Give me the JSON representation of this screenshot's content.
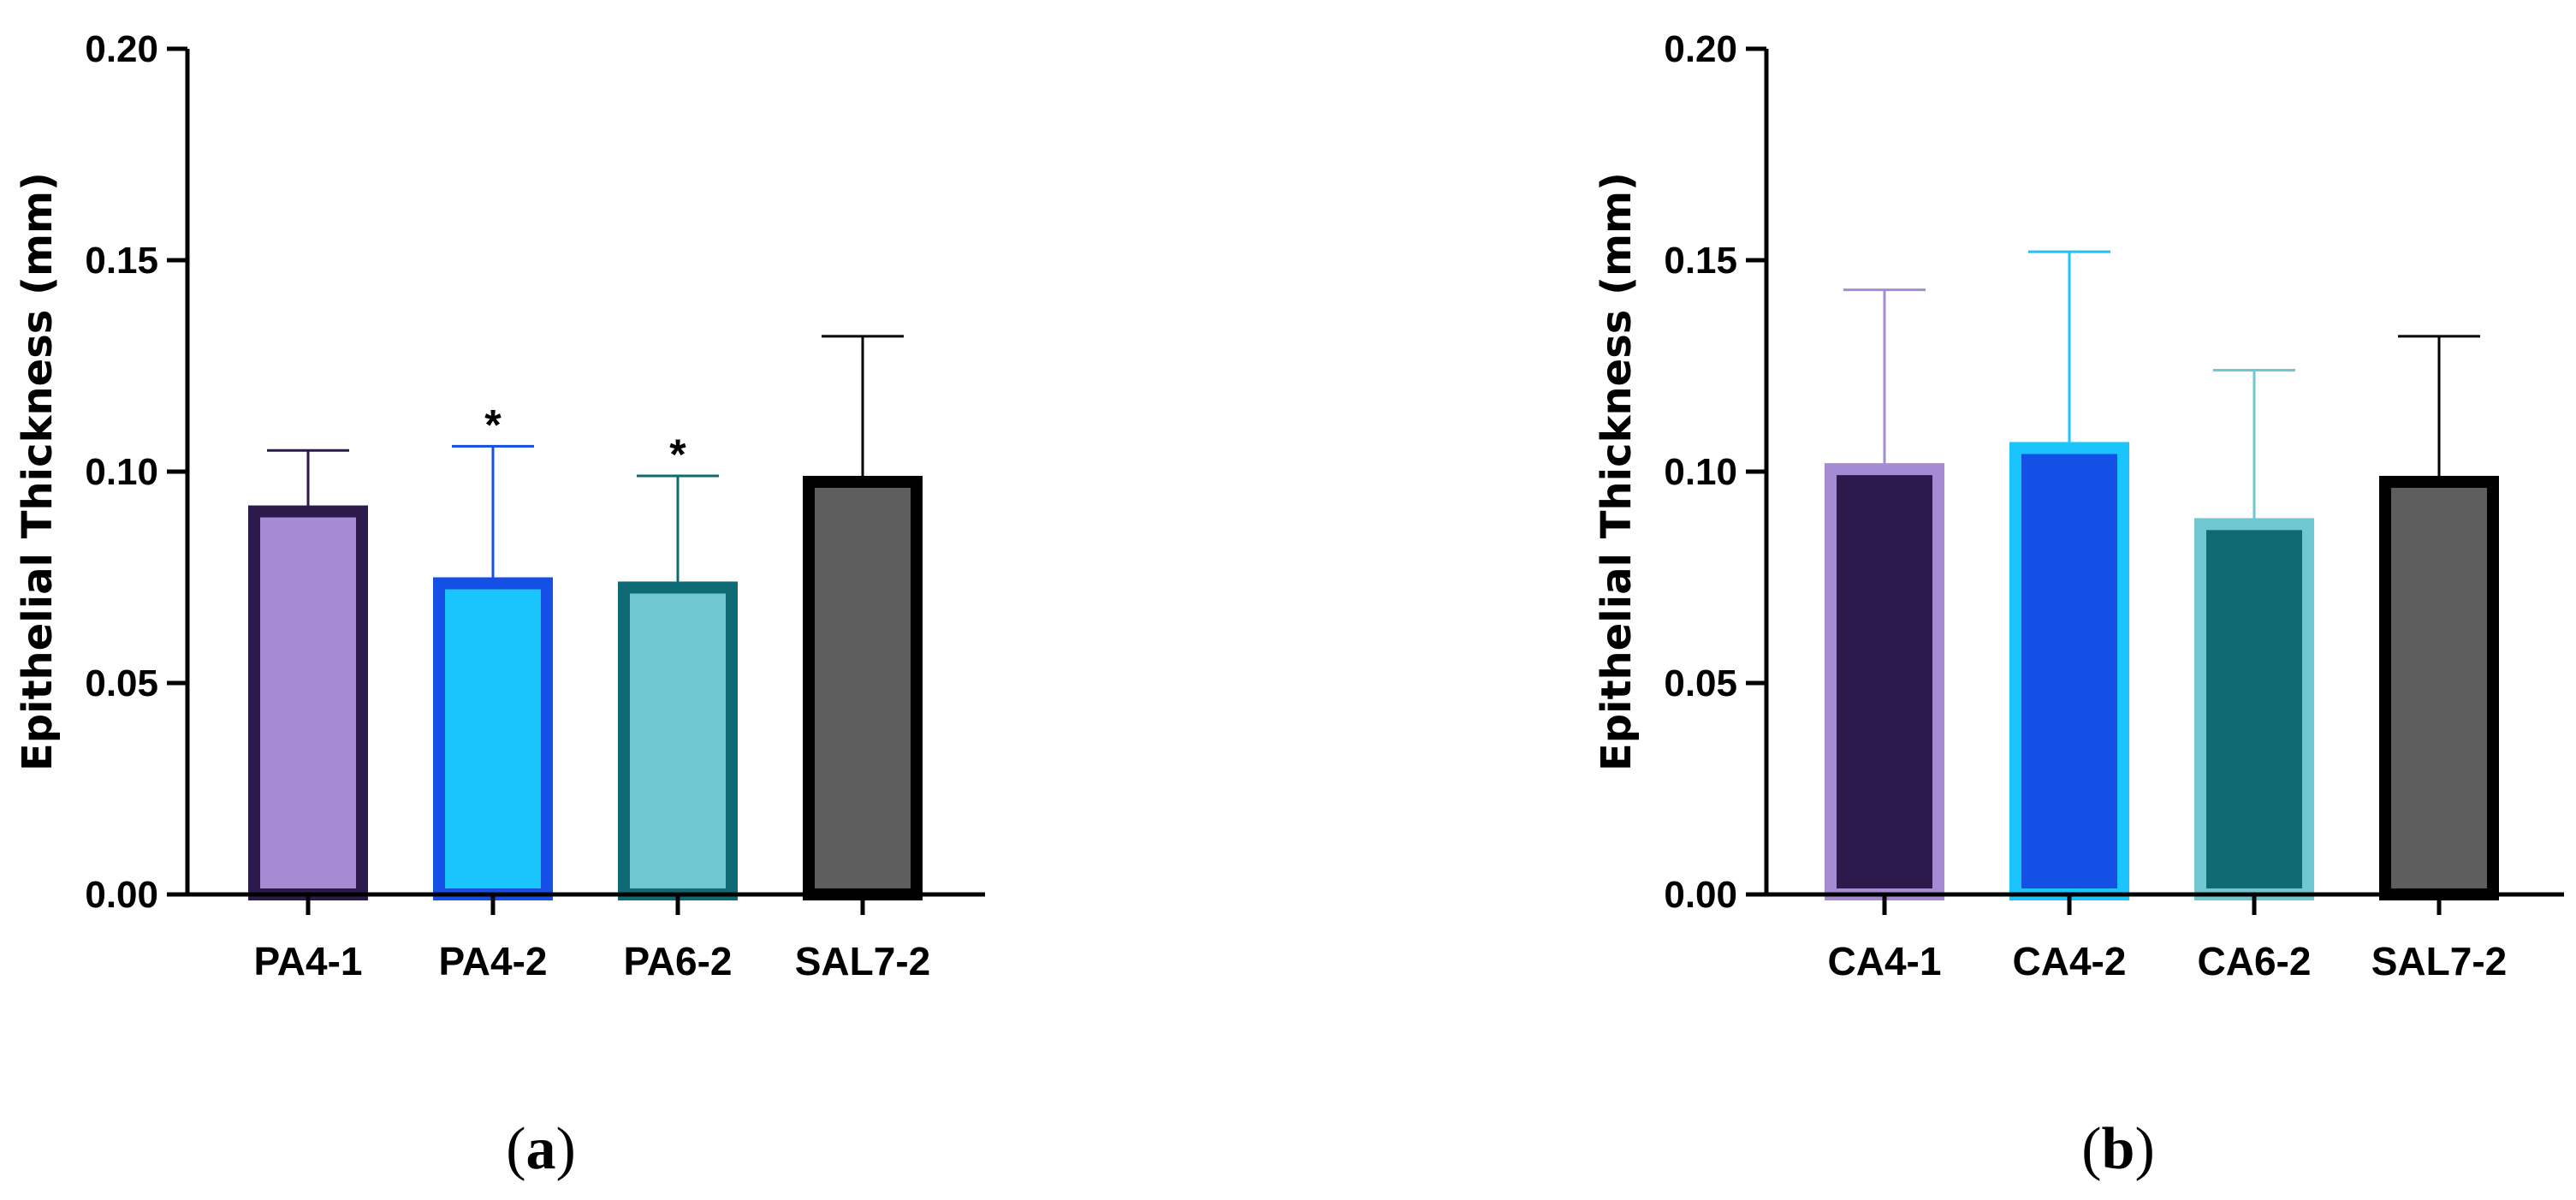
{
  "chart_data": [
    {
      "type": "bar",
      "panel_label": "a",
      "ylabel": "Epithelial Thickness (mm)",
      "ylim": [
        0,
        0.2
      ],
      "yticks": [
        "0.00",
        "0.05",
        "0.10",
        "0.15",
        "0.20"
      ],
      "categories": [
        "PA4-1",
        "PA4-2",
        "PA6-2",
        "SAL7-2"
      ],
      "values": [
        0.092,
        0.075,
        0.074,
        0.099
      ],
      "error_upper": [
        0.105,
        0.106,
        0.099,
        0.132
      ],
      "annotations": [
        "",
        "*",
        "*",
        ""
      ],
      "fill_colors": [
        "#a58bd3",
        "#1ac4fd",
        "#6fc7cf",
        "#5e5e5e"
      ],
      "edge_colors": [
        "#2c1a4d",
        "#1450e6",
        "#0f6b73",
        "#000000"
      ]
    },
    {
      "type": "bar",
      "panel_label": "b",
      "ylabel": "Epithelial Thickness (mm)",
      "ylim": [
        0,
        0.2
      ],
      "yticks": [
        "0.00",
        "0.05",
        "0.10",
        "0.15",
        "0.20"
      ],
      "categories": [
        "CA4-1",
        "CA4-2",
        "CA6-2",
        "SAL7-2"
      ],
      "values": [
        0.102,
        0.107,
        0.089,
        0.099
      ],
      "error_upper": [
        0.143,
        0.152,
        0.124,
        0.132
      ],
      "annotations": [
        "",
        "",
        "",
        ""
      ],
      "fill_colors": [
        "#2c1a4d",
        "#1450e6",
        "#0f6b73",
        "#5e5e5e"
      ],
      "edge_colors": [
        "#a58bd3",
        "#1ac4fd",
        "#6fc7cf",
        "#000000"
      ]
    }
  ]
}
